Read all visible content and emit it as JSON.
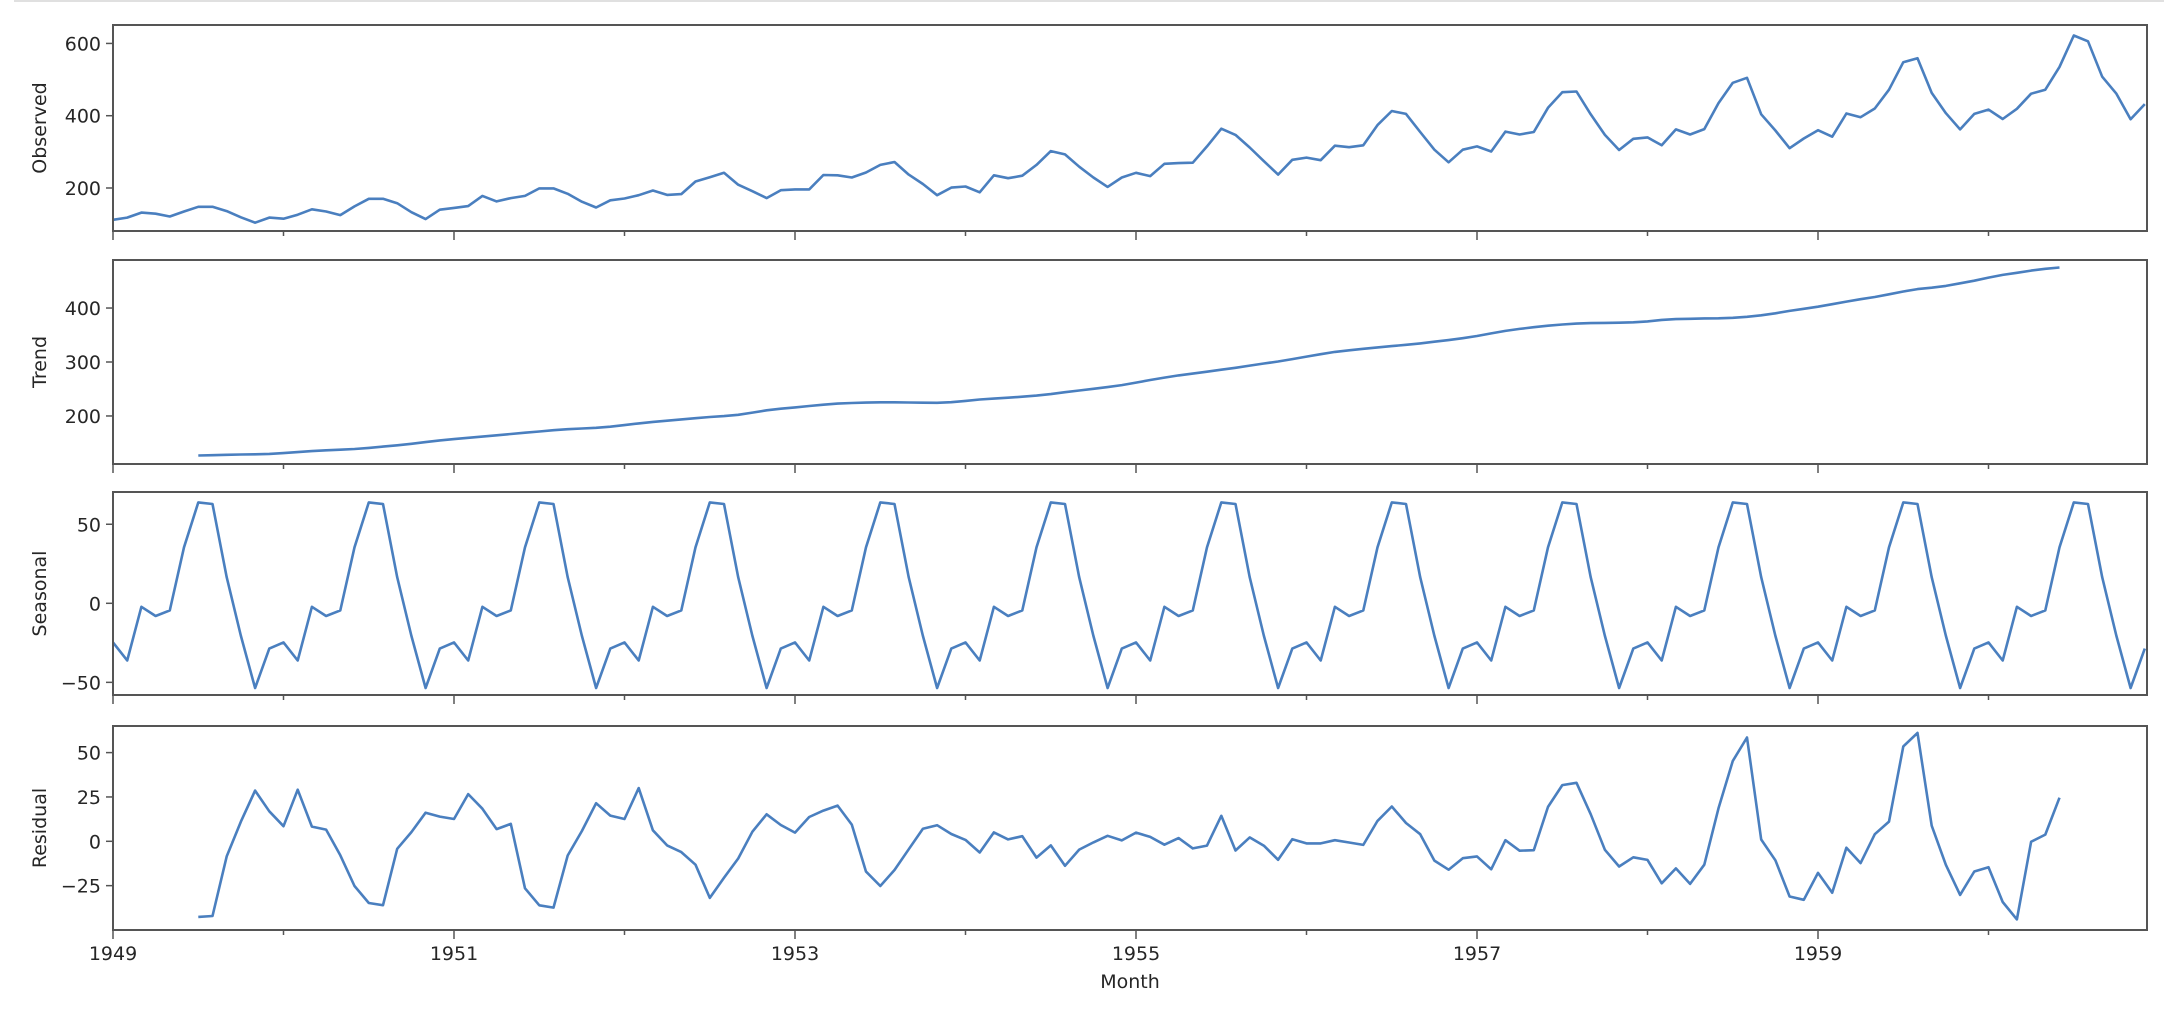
{
  "figure": {
    "xlabel": "Month",
    "line_color": "#4a7fbf",
    "x_tick_labels": [
      "1949",
      "1951",
      "1953",
      "1955",
      "1957",
      "1959"
    ]
  },
  "chart_data": [
    {
      "type": "line",
      "title": "",
      "ylabel": "Observed",
      "xlabel": "",
      "x_start": "1949-01",
      "x_end": "1960-12",
      "xlim": [
        "1949-01",
        "1960-12"
      ],
      "ylim": [
        81,
        651
      ],
      "yticks": [
        200,
        400,
        600
      ],
      "grid": false,
      "start_index": 0,
      "values": [
        112,
        118,
        132,
        129,
        121,
        135,
        148,
        148,
        136,
        119,
        104,
        118,
        115,
        126,
        141,
        135,
        125,
        149,
        170,
        170,
        158,
        133,
        114,
        140,
        145,
        150,
        178,
        163,
        172,
        178,
        199,
        199,
        184,
        162,
        146,
        166,
        171,
        180,
        193,
        181,
        183,
        218,
        230,
        242,
        209,
        191,
        172,
        194,
        196,
        196,
        236,
        235,
        229,
        243,
        264,
        272,
        237,
        211,
        180,
        201,
        204,
        188,
        235,
        227,
        234,
        264,
        302,
        293,
        259,
        229,
        203,
        229,
        242,
        233,
        267,
        269,
        270,
        315,
        364,
        347,
        312,
        274,
        237,
        278,
        284,
        277,
        317,
        313,
        318,
        374,
        413,
        405,
        355,
        306,
        271,
        306,
        315,
        301,
        356,
        348,
        355,
        422,
        465,
        467,
        404,
        347,
        305,
        336,
        340,
        318,
        362,
        348,
        363,
        435,
        491,
        505,
        404,
        359,
        310,
        337,
        360,
        342,
        406,
        396,
        420,
        472,
        548,
        559,
        463,
        407,
        362,
        405,
        417,
        391,
        419,
        461,
        472,
        535,
        622,
        606,
        508,
        461,
        390,
        432
      ]
    },
    {
      "type": "line",
      "ylabel": "Trend",
      "xlim": [
        "1949-01",
        "1960-12"
      ],
      "ylim": [
        111,
        489
      ],
      "yticks": [
        200,
        300,
        400
      ],
      "grid": false,
      "start_index": 6,
      "values": [
        126.79,
        127.25,
        127.96,
        128.58,
        129.0,
        129.75,
        131.25,
        133.08,
        134.92,
        136.42,
        137.42,
        138.75,
        140.92,
        143.17,
        145.71,
        148.42,
        151.54,
        154.71,
        157.13,
        159.54,
        161.83,
        164.13,
        166.67,
        169.08,
        171.25,
        173.58,
        175.46,
        176.83,
        178.04,
        180.17,
        183.13,
        186.21,
        189.04,
        191.29,
        193.58,
        195.83,
        198.04,
        199.75,
        202.21,
        206.25,
        210.42,
        213.38,
        215.83,
        218.5,
        220.92,
        222.92,
        224.08,
        224.71,
        225.33,
        225.33,
        224.96,
        224.58,
        224.46,
        225.54,
        228.0,
        230.46,
        232.25,
        233.92,
        235.63,
        237.75,
        240.5,
        243.96,
        247.17,
        250.25,
        253.5,
        257.13,
        261.83,
        266.67,
        271.13,
        275.21,
        278.5,
        281.96,
        285.75,
        289.33,
        293.25,
        297.17,
        301.0,
        305.46,
        309.96,
        314.42,
        318.63,
        321.75,
        324.5,
        327.08,
        329.54,
        331.83,
        334.46,
        337.54,
        340.54,
        344.08,
        348.25,
        353.0,
        357.63,
        361.38,
        364.5,
        367.17,
        369.46,
        371.21,
        372.17,
        372.42,
        372.75,
        373.63,
        375.25,
        377.92,
        379.5,
        380.0,
        380.71,
        380.96,
        381.83,
        383.67,
        386.5,
        390.33,
        394.71,
        398.63,
        402.54,
        407.17,
        411.88,
        416.33,
        420.5,
        425.5,
        430.71,
        435.13,
        437.71,
        440.96,
        445.83,
        450.63,
        456.33,
        461.38,
        465.21,
        469.33,
        472.75,
        475.04
      ]
    },
    {
      "type": "line",
      "ylabel": "Seasonal",
      "xlim": [
        "1949-01",
        "1960-12"
      ],
      "ylim": [
        -58,
        70.4
      ],
      "yticks": [
        -50,
        0,
        50
      ],
      "grid": false,
      "start_index": 0,
      "monthly_pattern": {
        "months": [
          "Jan",
          "Feb",
          "Mar",
          "Apr",
          "May",
          "Jun",
          "Jul",
          "Aug",
          "Sep",
          "Oct",
          "Nov",
          "Dec"
        ],
        "values": [
          -24.75,
          -36.19,
          -2.24,
          -8.04,
          -4.51,
          35.4,
          63.83,
          62.82,
          16.52,
          -20.64,
          -53.59,
          -28.62
        ]
      },
      "repeat_years": 12
    },
    {
      "type": "line",
      "ylabel": "Residual",
      "xlabel": "Month",
      "xlim": [
        "1949-01",
        "1960-12"
      ],
      "ylim": [
        -50,
        65
      ],
      "yticks": [
        -25,
        0,
        25,
        50
      ],
      "grid": false,
      "start_index": 6,
      "values": [
        -42.6,
        -42.1,
        -8.5,
        11.1,
        28.6,
        16.9,
        8.5,
        29.1,
        8.3,
        6.6,
        -7.9,
        -25.2,
        -34.8,
        -36.0,
        -4.2,
        5.2,
        16.1,
        13.9,
        12.6,
        26.6,
        18.4,
        6.9,
        9.8,
        -26.5,
        -36.1,
        -37.4,
        -8.0,
        5.8,
        21.5,
        14.5,
        12.6,
        30.0,
        6.2,
        -2.3,
        -6.1,
        -13.2,
        -31.9,
        -20.6,
        -9.7,
        5.4,
        15.2,
        9.2,
        4.9,
        13.7,
        17.3,
        20.1,
        9.4,
        -17.1,
        -25.2,
        -16.2,
        -4.5,
        7.1,
        9.1,
        4.1,
        0.8,
        -6.3,
        5.0,
        1.1,
        2.9,
        -9.2,
        -2.3,
        -13.8,
        -4.7,
        -0.6,
        3.1,
        0.5,
        4.9,
        2.5,
        -1.9,
        1.8,
        -4.0,
        -2.4,
        14.4,
        -5.2,
        2.2,
        -2.5,
        -10.4,
        1.2,
        -1.2,
        -1.2,
        0.6,
        -0.7,
        -2.0,
        11.5,
        19.6,
        10.3,
        4.0,
        -10.9,
        -16.0,
        -9.5,
        -8.5,
        -15.8,
        0.6,
        -5.3,
        -5.0,
        19.4,
        31.7,
        33.0,
        15.3,
        -4.8,
        -14.2,
        -9.0,
        -10.5,
        -23.7,
        -15.3,
        -24.0,
        -13.2,
        18.6,
        45.3,
        58.5,
        1.0,
        -10.7,
        -31.1,
        -33.0,
        -17.8,
        -29.0,
        -3.6,
        -12.3,
        4.0,
        11.1,
        53.5,
        61.1,
        8.8,
        -13.3,
        -30.2,
        -17.0,
        -14.6,
        -34.2,
        -44.0,
        -0.3,
        3.8,
        24.6
      ]
    }
  ]
}
